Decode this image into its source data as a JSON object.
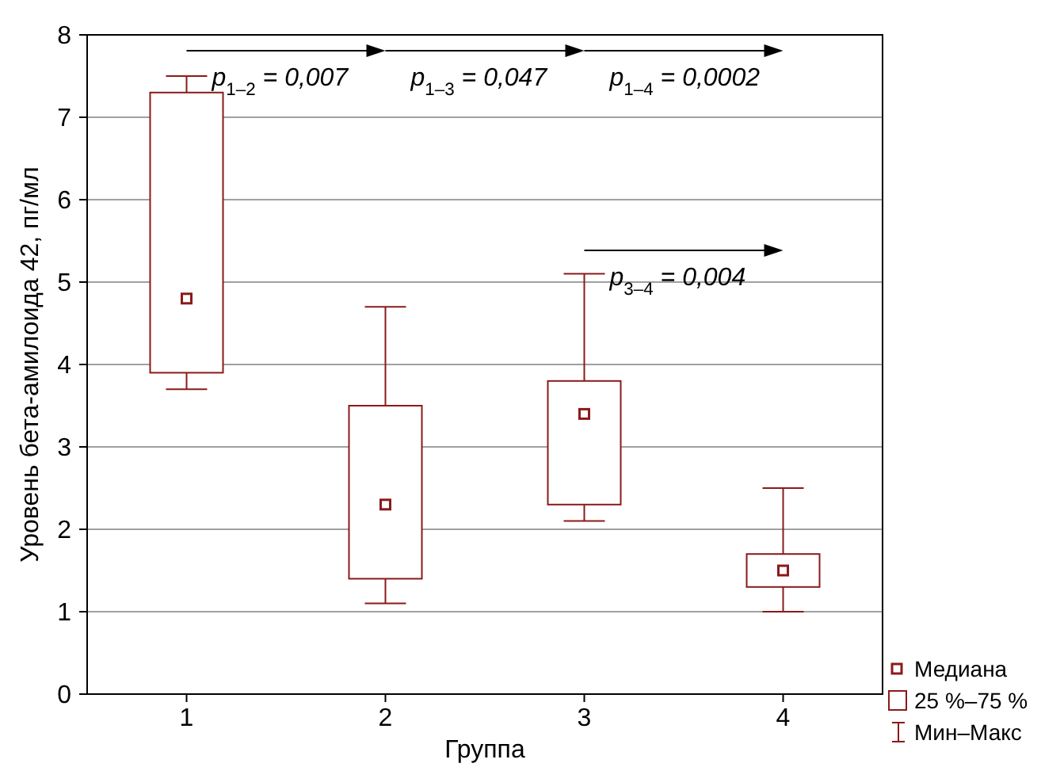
{
  "chart_data": {
    "type": "box",
    "xlabel": "Группа",
    "ylabel": "Уровень бета-амилоида 42, пг/мл",
    "categories": [
      "1",
      "2",
      "3",
      "4"
    ],
    "series": [
      {
        "color": "#8b1a1a",
        "boxes": [
          {
            "low": 3.7,
            "q1": 3.9,
            "median": 4.8,
            "q3": 7.3,
            "high": 7.5
          },
          {
            "low": 1.1,
            "q1": 1.4,
            "median": 2.3,
            "q3": 3.5,
            "high": 4.7
          },
          {
            "low": 2.1,
            "q1": 2.3,
            "median": 3.4,
            "q3": 3.8,
            "high": 5.1
          },
          {
            "low": 1.0,
            "q1": 1.3,
            "median": 1.5,
            "q3": 1.7,
            "high": 2.5
          }
        ]
      }
    ],
    "ylim": [
      0,
      8
    ],
    "yticks": [
      0,
      1,
      2,
      3,
      4,
      5,
      6,
      7,
      8
    ],
    "grid": "y",
    "annotations": [
      "p$_{1–2}$ = 0,007",
      "p$_{1–3}$ = 0,047",
      "p$_{1–4}$ = 0,0002",
      "p$_{3–4}$ = 0,004",
      "Медиана",
      "25 %–75 %",
      "Мин–Макс"
    ]
  }
}
